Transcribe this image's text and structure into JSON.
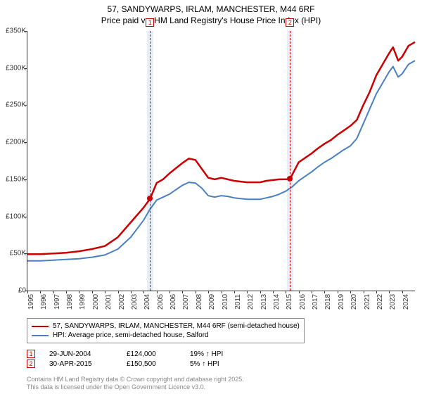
{
  "title": {
    "line1": "57, SANDYWARPS, IRLAM, MANCHESTER, M44 6RF",
    "line2": "Price paid vs. HM Land Registry's House Price Index (HPI)",
    "fontsize": 12
  },
  "chart": {
    "type": "line",
    "background_color": "#ffffff",
    "axis_color": "#333333",
    "x": {
      "min": 1995,
      "max": 2025,
      "ticks": [
        1995,
        1996,
        1997,
        1998,
        1999,
        2000,
        2001,
        2002,
        2003,
        2004,
        2005,
        2006,
        2007,
        2008,
        2009,
        2010,
        2011,
        2012,
        2013,
        2014,
        2015,
        2016,
        2017,
        2018,
        2019,
        2020,
        2021,
        2022,
        2023,
        2024
      ],
      "tick_fontsize": 10
    },
    "y": {
      "min": 0,
      "max": 350000,
      "ticks": [
        0,
        50000,
        100000,
        150000,
        200000,
        250000,
        300000,
        350000
      ],
      "tick_labels": [
        "£0",
        "£50K",
        "£100K",
        "£150K",
        "£200K",
        "£250K",
        "£300K",
        "£350K"
      ],
      "tick_fontsize": 10
    },
    "series": [
      {
        "name": "57, SANDYWARPS, IRLAM, MANCHESTER, M44 6RF (semi-detached house)",
        "color": "#cc0000",
        "line_width": 2.5,
        "pts": [
          [
            1995,
            49000
          ],
          [
            1996,
            49000
          ],
          [
            1997,
            50000
          ],
          [
            1998,
            51000
          ],
          [
            1999,
            53000
          ],
          [
            2000,
            56000
          ],
          [
            2001,
            60000
          ],
          [
            2002,
            72000
          ],
          [
            2003,
            92000
          ],
          [
            2004.0,
            112000
          ],
          [
            2004.5,
            124000
          ],
          [
            2005,
            145000
          ],
          [
            2005.5,
            150000
          ],
          [
            2006,
            158000
          ],
          [
            2006.5,
            165000
          ],
          [
            2007,
            172000
          ],
          [
            2007.5,
            178000
          ],
          [
            2008,
            176000
          ],
          [
            2008.5,
            164000
          ],
          [
            2009,
            152000
          ],
          [
            2009.5,
            150000
          ],
          [
            2010,
            152000
          ],
          [
            2010.5,
            150000
          ],
          [
            2011,
            148000
          ],
          [
            2012,
            146000
          ],
          [
            2013,
            146000
          ],
          [
            2013.5,
            148000
          ],
          [
            2014,
            149000
          ],
          [
            2014.5,
            150000
          ],
          [
            2015.0,
            150000
          ],
          [
            2015.33,
            150500
          ],
          [
            2016,
            173000
          ],
          [
            2016.5,
            179000
          ],
          [
            2017,
            185000
          ],
          [
            2017.5,
            192000
          ],
          [
            2018,
            198000
          ],
          [
            2018.5,
            203000
          ],
          [
            2019,
            210000
          ],
          [
            2019.5,
            216000
          ],
          [
            2020,
            222000
          ],
          [
            2020.5,
            230000
          ],
          [
            2021,
            250000
          ],
          [
            2021.5,
            268000
          ],
          [
            2022,
            290000
          ],
          [
            2022.5,
            305000
          ],
          [
            2023,
            320000
          ],
          [
            2023.3,
            328000
          ],
          [
            2023.7,
            310000
          ],
          [
            2024,
            315000
          ],
          [
            2024.5,
            330000
          ],
          [
            2025,
            335000
          ]
        ]
      },
      {
        "name": "HPI: Average price, semi-detached house, Salford",
        "color": "#4a7fc4",
        "line_width": 2,
        "pts": [
          [
            1995,
            40000
          ],
          [
            1996,
            40000
          ],
          [
            1997,
            41000
          ],
          [
            1998,
            42000
          ],
          [
            1999,
            43000
          ],
          [
            2000,
            45000
          ],
          [
            2001,
            48000
          ],
          [
            2002,
            56000
          ],
          [
            2003,
            72000
          ],
          [
            2004,
            95000
          ],
          [
            2004.5,
            110000
          ],
          [
            2005,
            122000
          ],
          [
            2005.5,
            126000
          ],
          [
            2006,
            130000
          ],
          [
            2006.5,
            136000
          ],
          [
            2007,
            142000
          ],
          [
            2007.5,
            146000
          ],
          [
            2008,
            145000
          ],
          [
            2008.5,
            138000
          ],
          [
            2009,
            128000
          ],
          [
            2009.5,
            126000
          ],
          [
            2010,
            128000
          ],
          [
            2010.5,
            127000
          ],
          [
            2011,
            125000
          ],
          [
            2012,
            123000
          ],
          [
            2013,
            123000
          ],
          [
            2013.5,
            125000
          ],
          [
            2014,
            127000
          ],
          [
            2014.5,
            130000
          ],
          [
            2015,
            134000
          ],
          [
            2015.5,
            140000
          ],
          [
            2016,
            148000
          ],
          [
            2016.5,
            154000
          ],
          [
            2017,
            160000
          ],
          [
            2017.5,
            167000
          ],
          [
            2018,
            173000
          ],
          [
            2018.5,
            178000
          ],
          [
            2019,
            184000
          ],
          [
            2019.5,
            190000
          ],
          [
            2020,
            195000
          ],
          [
            2020.5,
            205000
          ],
          [
            2021,
            225000
          ],
          [
            2021.5,
            245000
          ],
          [
            2022,
            265000
          ],
          [
            2022.5,
            280000
          ],
          [
            2023,
            295000
          ],
          [
            2023.3,
            302000
          ],
          [
            2023.7,
            288000
          ],
          [
            2024,
            292000
          ],
          [
            2024.5,
            305000
          ],
          [
            2025,
            310000
          ]
        ]
      }
    ],
    "sale_bands": [
      {
        "label": "1",
        "x": 2004.49,
        "band_color": "#e8eef7",
        "band_half_width_years": 0.25,
        "line_color": "#cc0000",
        "date": "29-JUN-2004",
        "price_label": "£124,000",
        "price_value": 124000,
        "hpi_label": "19% ↑ HPI"
      },
      {
        "label": "2",
        "x": 2015.33,
        "band_color": "#e8eef7",
        "band_half_width_years": 0.25,
        "line_color": "#cc0000",
        "date": "30-APR-2015",
        "price_label": "£150,500",
        "price_value": 150500,
        "hpi_label": "5% ↑ HPI"
      }
    ]
  },
  "legend": {
    "border_color": "#888888",
    "fontsize": 10
  },
  "footer": {
    "line1": "Contains HM Land Registry data © Crown copyright and database right 2025.",
    "line2": "This data is licensed under the Open Government Licence v3.0.",
    "color": "#888888",
    "fontsize": 9
  }
}
